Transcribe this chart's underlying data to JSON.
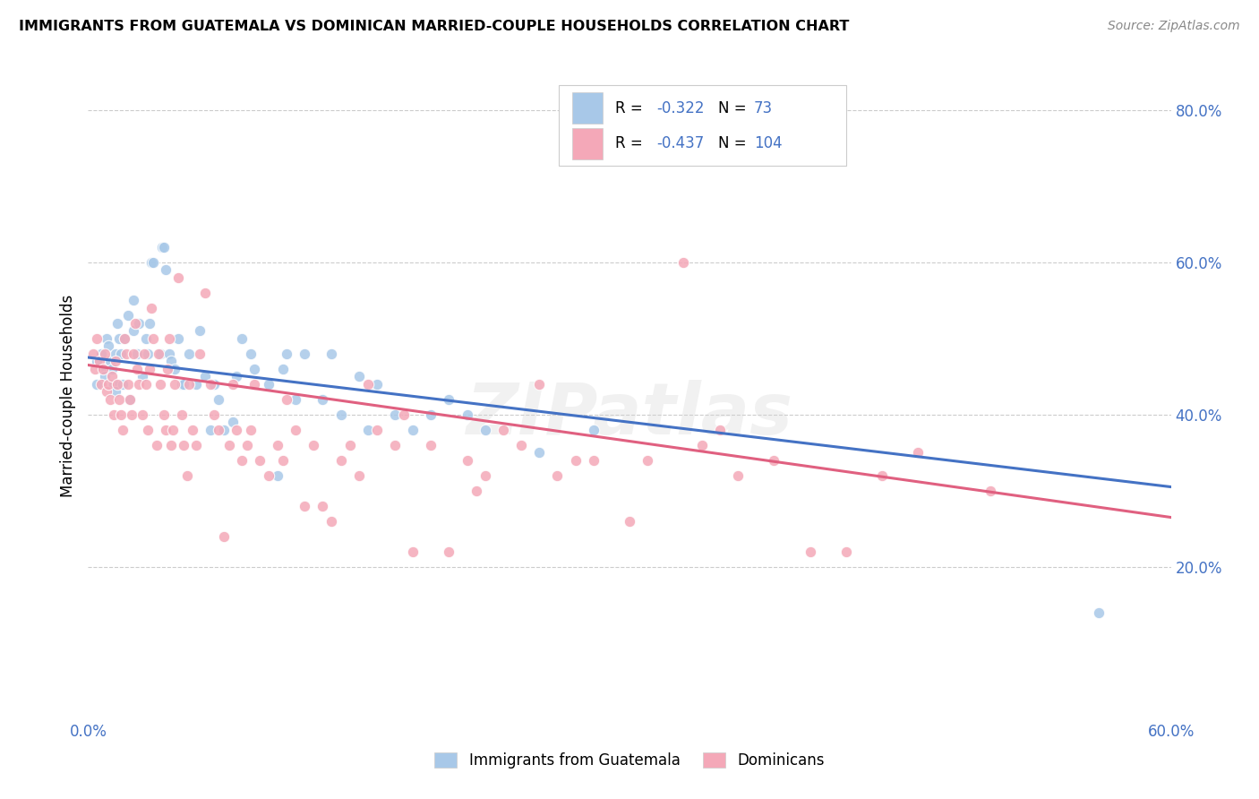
{
  "title": "IMMIGRANTS FROM GUATEMALA VS DOMINICAN MARRIED-COUPLE HOUSEHOLDS CORRELATION CHART",
  "source": "Source: ZipAtlas.com",
  "ylabel": "Married-couple Households",
  "legend_label_1": "Immigrants from Guatemala",
  "legend_label_2": "Dominicans",
  "color_blue": "#a8c8e8",
  "color_pink": "#f4a8b8",
  "color_blue_line": "#4472c4",
  "color_pink_line": "#e06080",
  "color_axis_label": "#4472c4",
  "xlim": [
    0.0,
    0.6
  ],
  "ylim": [
    0.0,
    0.85
  ],
  "scatter_blue": [
    [
      0.005,
      0.47
    ],
    [
      0.005,
      0.44
    ],
    [
      0.007,
      0.48
    ],
    [
      0.008,
      0.46
    ],
    [
      0.009,
      0.45
    ],
    [
      0.01,
      0.5
    ],
    [
      0.011,
      0.49
    ],
    [
      0.012,
      0.47
    ],
    [
      0.013,
      0.46
    ],
    [
      0.014,
      0.44
    ],
    [
      0.015,
      0.43
    ],
    [
      0.015,
      0.48
    ],
    [
      0.016,
      0.52
    ],
    [
      0.017,
      0.5
    ],
    [
      0.018,
      0.48
    ],
    [
      0.019,
      0.44
    ],
    [
      0.02,
      0.5
    ],
    [
      0.022,
      0.53
    ],
    [
      0.023,
      0.42
    ],
    [
      0.025,
      0.55
    ],
    [
      0.025,
      0.51
    ],
    [
      0.027,
      0.48
    ],
    [
      0.028,
      0.52
    ],
    [
      0.03,
      0.45
    ],
    [
      0.032,
      0.5
    ],
    [
      0.033,
      0.48
    ],
    [
      0.034,
      0.52
    ],
    [
      0.035,
      0.6
    ],
    [
      0.036,
      0.6
    ],
    [
      0.04,
      0.48
    ],
    [
      0.041,
      0.62
    ],
    [
      0.042,
      0.62
    ],
    [
      0.043,
      0.59
    ],
    [
      0.045,
      0.48
    ],
    [
      0.046,
      0.47
    ],
    [
      0.048,
      0.46
    ],
    [
      0.05,
      0.5
    ],
    [
      0.052,
      0.44
    ],
    [
      0.053,
      0.44
    ],
    [
      0.056,
      0.48
    ],
    [
      0.06,
      0.44
    ],
    [
      0.062,
      0.51
    ],
    [
      0.065,
      0.45
    ],
    [
      0.068,
      0.38
    ],
    [
      0.07,
      0.44
    ],
    [
      0.072,
      0.42
    ],
    [
      0.075,
      0.38
    ],
    [
      0.08,
      0.39
    ],
    [
      0.082,
      0.45
    ],
    [
      0.085,
      0.5
    ],
    [
      0.09,
      0.48
    ],
    [
      0.092,
      0.46
    ],
    [
      0.1,
      0.44
    ],
    [
      0.105,
      0.32
    ],
    [
      0.108,
      0.46
    ],
    [
      0.11,
      0.48
    ],
    [
      0.115,
      0.42
    ],
    [
      0.12,
      0.48
    ],
    [
      0.13,
      0.42
    ],
    [
      0.135,
      0.48
    ],
    [
      0.14,
      0.4
    ],
    [
      0.15,
      0.45
    ],
    [
      0.155,
      0.38
    ],
    [
      0.16,
      0.44
    ],
    [
      0.17,
      0.4
    ],
    [
      0.18,
      0.38
    ],
    [
      0.19,
      0.4
    ],
    [
      0.2,
      0.42
    ],
    [
      0.21,
      0.4
    ],
    [
      0.22,
      0.38
    ],
    [
      0.25,
      0.35
    ],
    [
      0.28,
      0.38
    ],
    [
      0.56,
      0.14
    ]
  ],
  "scatter_pink": [
    [
      0.003,
      0.48
    ],
    [
      0.004,
      0.46
    ],
    [
      0.005,
      0.5
    ],
    [
      0.006,
      0.47
    ],
    [
      0.007,
      0.44
    ],
    [
      0.008,
      0.46
    ],
    [
      0.009,
      0.48
    ],
    [
      0.01,
      0.43
    ],
    [
      0.011,
      0.44
    ],
    [
      0.012,
      0.42
    ],
    [
      0.013,
      0.45
    ],
    [
      0.014,
      0.4
    ],
    [
      0.015,
      0.47
    ],
    [
      0.016,
      0.44
    ],
    [
      0.017,
      0.42
    ],
    [
      0.018,
      0.4
    ],
    [
      0.019,
      0.38
    ],
    [
      0.02,
      0.5
    ],
    [
      0.021,
      0.48
    ],
    [
      0.022,
      0.44
    ],
    [
      0.023,
      0.42
    ],
    [
      0.024,
      0.4
    ],
    [
      0.025,
      0.48
    ],
    [
      0.026,
      0.52
    ],
    [
      0.027,
      0.46
    ],
    [
      0.028,
      0.44
    ],
    [
      0.03,
      0.4
    ],
    [
      0.031,
      0.48
    ],
    [
      0.032,
      0.44
    ],
    [
      0.033,
      0.38
    ],
    [
      0.034,
      0.46
    ],
    [
      0.035,
      0.54
    ],
    [
      0.036,
      0.5
    ],
    [
      0.038,
      0.36
    ],
    [
      0.039,
      0.48
    ],
    [
      0.04,
      0.44
    ],
    [
      0.042,
      0.4
    ],
    [
      0.043,
      0.38
    ],
    [
      0.044,
      0.46
    ],
    [
      0.045,
      0.5
    ],
    [
      0.046,
      0.36
    ],
    [
      0.047,
      0.38
    ],
    [
      0.048,
      0.44
    ],
    [
      0.05,
      0.58
    ],
    [
      0.052,
      0.4
    ],
    [
      0.053,
      0.36
    ],
    [
      0.055,
      0.32
    ],
    [
      0.056,
      0.44
    ],
    [
      0.058,
      0.38
    ],
    [
      0.06,
      0.36
    ],
    [
      0.062,
      0.48
    ],
    [
      0.065,
      0.56
    ],
    [
      0.068,
      0.44
    ],
    [
      0.07,
      0.4
    ],
    [
      0.072,
      0.38
    ],
    [
      0.075,
      0.24
    ],
    [
      0.078,
      0.36
    ],
    [
      0.08,
      0.44
    ],
    [
      0.082,
      0.38
    ],
    [
      0.085,
      0.34
    ],
    [
      0.088,
      0.36
    ],
    [
      0.09,
      0.38
    ],
    [
      0.092,
      0.44
    ],
    [
      0.095,
      0.34
    ],
    [
      0.1,
      0.32
    ],
    [
      0.105,
      0.36
    ],
    [
      0.108,
      0.34
    ],
    [
      0.11,
      0.42
    ],
    [
      0.115,
      0.38
    ],
    [
      0.12,
      0.28
    ],
    [
      0.125,
      0.36
    ],
    [
      0.13,
      0.28
    ],
    [
      0.135,
      0.26
    ],
    [
      0.14,
      0.34
    ],
    [
      0.145,
      0.36
    ],
    [
      0.15,
      0.32
    ],
    [
      0.155,
      0.44
    ],
    [
      0.16,
      0.38
    ],
    [
      0.17,
      0.36
    ],
    [
      0.175,
      0.4
    ],
    [
      0.18,
      0.22
    ],
    [
      0.19,
      0.36
    ],
    [
      0.2,
      0.22
    ],
    [
      0.21,
      0.34
    ],
    [
      0.215,
      0.3
    ],
    [
      0.22,
      0.32
    ],
    [
      0.23,
      0.38
    ],
    [
      0.24,
      0.36
    ],
    [
      0.25,
      0.44
    ],
    [
      0.26,
      0.32
    ],
    [
      0.27,
      0.34
    ],
    [
      0.28,
      0.34
    ],
    [
      0.3,
      0.26
    ],
    [
      0.31,
      0.34
    ],
    [
      0.33,
      0.6
    ],
    [
      0.34,
      0.36
    ],
    [
      0.35,
      0.38
    ],
    [
      0.36,
      0.32
    ],
    [
      0.38,
      0.34
    ],
    [
      0.4,
      0.22
    ],
    [
      0.42,
      0.22
    ],
    [
      0.44,
      0.32
    ],
    [
      0.46,
      0.35
    ],
    [
      0.5,
      0.3
    ]
  ],
  "trendline_blue": {
    "x_start": 0.0,
    "x_end": 0.6,
    "y_start": 0.475,
    "y_end": 0.305
  },
  "trendline_pink": {
    "x_start": 0.0,
    "x_end": 0.6,
    "y_start": 0.465,
    "y_end": 0.265
  },
  "watermark": "ZIPatlas",
  "background_color": "#ffffff",
  "grid_color": "#cccccc"
}
